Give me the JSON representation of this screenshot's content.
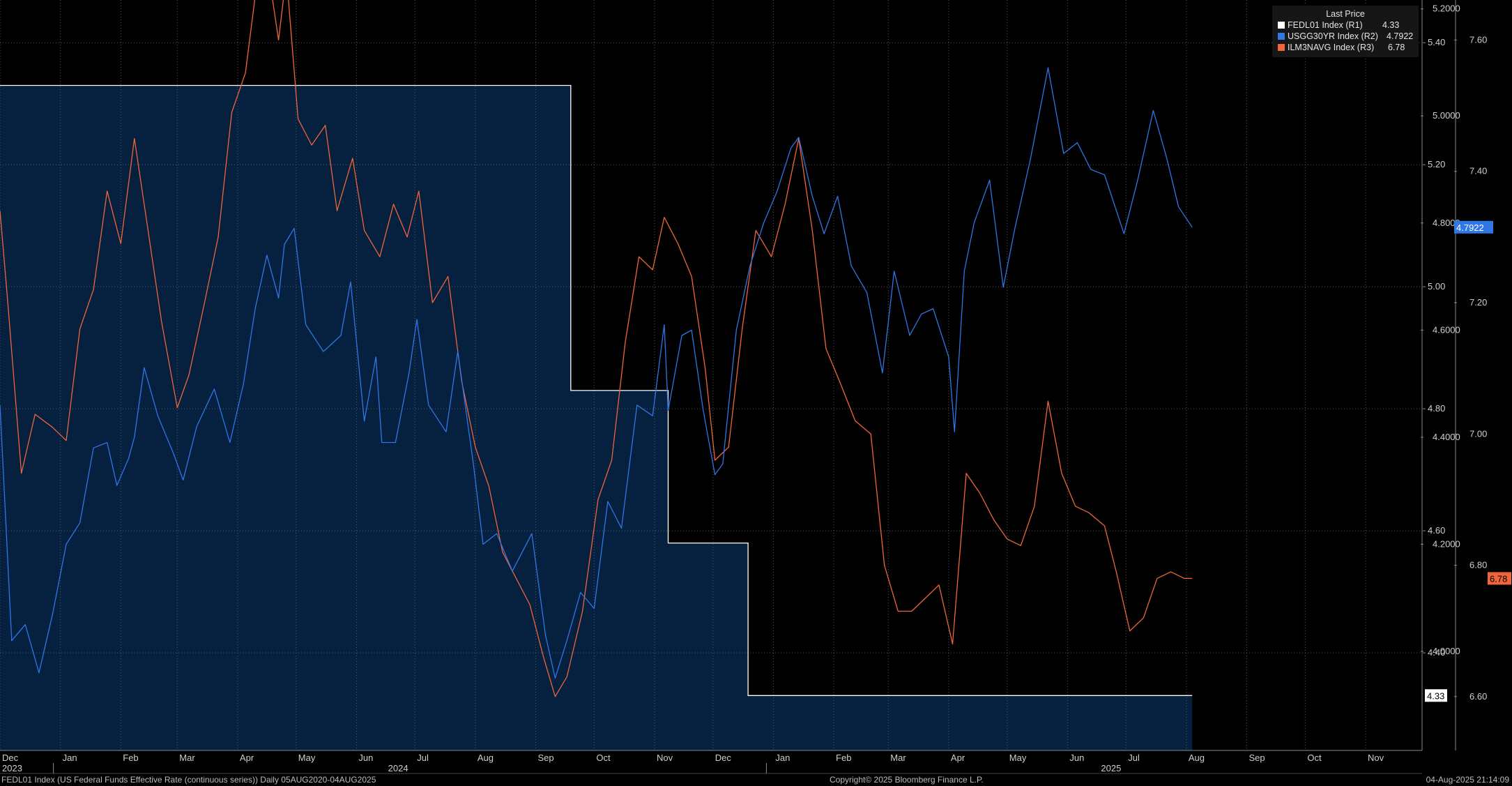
{
  "legend": {
    "header": "Last Price",
    "items": [
      {
        "label": "FEDL01 Index  (R1)",
        "value": "4.33",
        "color": "#ffffff"
      },
      {
        "label": "USGG30YR Index  (R2)",
        "value": "4.7922",
        "color": "#2f76e6"
      },
      {
        "label": "ILM3NAVG Index  (R3)",
        "value": "6.78",
        "color": "#f0653a"
      }
    ]
  },
  "footer": {
    "left": "FEDL01 Index (US Federal Funds Effective Rate (continuous series))  Daily 05AUG2020-04AUG2025",
    "center": "Copyright© 2025 Bloomberg Finance L.P.",
    "right": "04-Aug-2025 21:14:09"
  },
  "colors": {
    "background": "#000000",
    "fed_fill": "#06203f",
    "fed_line": "#ffffff",
    "ust": "#2f76e6",
    "mort": "#f0653a",
    "grid": "#5a5a5a"
  },
  "chart_data": {
    "type": "line",
    "x_range": [
      "2023-12-01",
      "2025-11-30"
    ],
    "x_ticks": [
      {
        "label": "Dec",
        "year": "2023",
        "date": "2023-12-01"
      },
      {
        "label": "Jan",
        "year": "2024",
        "date": "2024-01-01"
      },
      {
        "label": "Feb",
        "date": "2024-02-01"
      },
      {
        "label": "Mar",
        "date": "2024-03-01"
      },
      {
        "label": "Apr",
        "date": "2024-04-01"
      },
      {
        "label": "May",
        "date": "2024-05-01"
      },
      {
        "label": "Jun",
        "date": "2024-06-01"
      },
      {
        "label": "Jul",
        "date": "2024-07-01"
      },
      {
        "label": "Aug",
        "date": "2024-08-01"
      },
      {
        "label": "Sep",
        "date": "2024-09-01"
      },
      {
        "label": "Oct",
        "date": "2024-10-01"
      },
      {
        "label": "Nov",
        "date": "2024-11-01"
      },
      {
        "label": "Dec",
        "date": "2024-12-01"
      },
      {
        "label": "Jan",
        "year": "2025",
        "date": "2025-01-01"
      },
      {
        "label": "Feb",
        "date": "2025-02-01"
      },
      {
        "label": "Mar",
        "date": "2025-03-01"
      },
      {
        "label": "Apr",
        "date": "2025-04-01"
      },
      {
        "label": "May",
        "date": "2025-05-01"
      },
      {
        "label": "Jun",
        "date": "2025-06-01"
      },
      {
        "label": "Jul",
        "date": "2025-07-01"
      },
      {
        "label": "Aug",
        "date": "2025-08-01"
      },
      {
        "label": "Sep",
        "date": "2025-09-01"
      },
      {
        "label": "Oct",
        "date": "2025-10-01"
      },
      {
        "label": "Nov",
        "date": "2025-11-01"
      }
    ],
    "axes": {
      "R1": {
        "ticks": [
          "5.40",
          "5.20",
          "5.00",
          "4.80",
          "4.60",
          "4.40"
        ],
        "ylim": [
          4.24,
          5.47
        ]
      },
      "R2": {
        "ticks": [
          "5.2000",
          "5.0000",
          "4.8000",
          "4.6000",
          "4.4000",
          "4.2000",
          "4.0000"
        ],
        "ylim": [
          3.815,
          5.2165
        ]
      },
      "R3": {
        "ticks": [
          "7.60",
          "7.40",
          "7.20",
          "7.00",
          "6.80",
          "6.60"
        ],
        "ylim": [
          6.518,
          7.661
        ]
      }
    },
    "last_price_labels": [
      {
        "series": "FEDL01 Index",
        "value": "4.33",
        "axis": "R1"
      },
      {
        "series": "USGG30YR Index",
        "value": "4.7922",
        "axis": "R2"
      },
      {
        "series": "ILM3NAVG Index",
        "value": "6.78",
        "axis": "R3"
      }
    ],
    "series": [
      {
        "name": "FEDL01 Index",
        "axis": "R1",
        "style": "step-area",
        "points": [
          [
            "2023-12-01",
            5.33
          ],
          [
            "2024-09-19",
            5.33
          ],
          [
            "2024-09-19",
            4.83
          ],
          [
            "2024-11-08",
            4.83
          ],
          [
            "2024-11-08",
            4.58
          ],
          [
            "2024-12-19",
            4.58
          ],
          [
            "2024-12-19",
            4.33
          ],
          [
            "2025-08-04",
            4.33
          ]
        ]
      },
      {
        "name": "USGG30YR Index",
        "axis": "R2",
        "points": [
          [
            "2023-12-01",
            4.46
          ],
          [
            "2023-12-07",
            4.02
          ],
          [
            "2023-12-14",
            4.05
          ],
          [
            "2023-12-21",
            3.96
          ],
          [
            "2023-12-28",
            4.07
          ],
          [
            "2024-01-04",
            4.2
          ],
          [
            "2024-01-11",
            4.24
          ],
          [
            "2024-01-18",
            4.38
          ],
          [
            "2024-01-25",
            4.39
          ],
          [
            "2024-01-30",
            4.31
          ],
          [
            "2024-02-05",
            4.36
          ],
          [
            "2024-02-08",
            4.4
          ],
          [
            "2024-02-13",
            4.53
          ],
          [
            "2024-02-20",
            4.44
          ],
          [
            "2024-02-28",
            4.37
          ],
          [
            "2024-03-04",
            4.32
          ],
          [
            "2024-03-11",
            4.42
          ],
          [
            "2024-03-20",
            4.49
          ],
          [
            "2024-03-28",
            4.39
          ],
          [
            "2024-04-04",
            4.5
          ],
          [
            "2024-04-10",
            4.64
          ],
          [
            "2024-04-16",
            4.74
          ],
          [
            "2024-04-22",
            4.66
          ],
          [
            "2024-04-25",
            4.76
          ],
          [
            "2024-04-30",
            4.79
          ],
          [
            "2024-05-06",
            4.61
          ],
          [
            "2024-05-15",
            4.56
          ],
          [
            "2024-05-24",
            4.59
          ],
          [
            "2024-05-29",
            4.69
          ],
          [
            "2024-06-05",
            4.43
          ],
          [
            "2024-06-11",
            4.55
          ],
          [
            "2024-06-14",
            4.39
          ],
          [
            "2024-06-21",
            4.39
          ],
          [
            "2024-06-28",
            4.52
          ],
          [
            "2024-07-02",
            4.62
          ],
          [
            "2024-07-08",
            4.46
          ],
          [
            "2024-07-17",
            4.41
          ],
          [
            "2024-07-23",
            4.56
          ],
          [
            "2024-07-31",
            4.35
          ],
          [
            "2024-08-05",
            4.2
          ],
          [
            "2024-08-12",
            4.22
          ],
          [
            "2024-08-20",
            4.15
          ],
          [
            "2024-08-30",
            4.22
          ],
          [
            "2024-09-06",
            4.03
          ],
          [
            "2024-09-11",
            3.95
          ],
          [
            "2024-09-17",
            4.02
          ],
          [
            "2024-09-24",
            4.11
          ],
          [
            "2024-10-01",
            4.08
          ],
          [
            "2024-10-08",
            4.28
          ],
          [
            "2024-10-15",
            4.23
          ],
          [
            "2024-10-23",
            4.46
          ],
          [
            "2024-10-31",
            4.44
          ],
          [
            "2024-11-06",
            4.61
          ],
          [
            "2024-11-08",
            4.45
          ],
          [
            "2024-11-15",
            4.59
          ],
          [
            "2024-11-20",
            4.6
          ],
          [
            "2024-11-26",
            4.45
          ],
          [
            "2024-12-02",
            4.33
          ],
          [
            "2024-12-06",
            4.35
          ],
          [
            "2024-12-13",
            4.6
          ],
          [
            "2024-12-20",
            4.72
          ],
          [
            "2024-12-27",
            4.8
          ],
          [
            "2025-01-03",
            4.86
          ],
          [
            "2025-01-10",
            4.94
          ],
          [
            "2025-01-14",
            4.96
          ],
          [
            "2025-01-21",
            4.85
          ],
          [
            "2025-01-27",
            4.78
          ],
          [
            "2025-02-03",
            4.85
          ],
          [
            "2025-02-10",
            4.72
          ],
          [
            "2025-02-18",
            4.67
          ],
          [
            "2025-02-26",
            4.52
          ],
          [
            "2025-03-04",
            4.71
          ],
          [
            "2025-03-12",
            4.59
          ],
          [
            "2025-03-18",
            4.63
          ],
          [
            "2025-03-24",
            4.64
          ],
          [
            "2025-04-01",
            4.55
          ],
          [
            "2025-04-04",
            4.41
          ],
          [
            "2025-04-09",
            4.71
          ],
          [
            "2025-04-14",
            4.8
          ],
          [
            "2025-04-22",
            4.88
          ],
          [
            "2025-04-29",
            4.68
          ],
          [
            "2025-05-05",
            4.79
          ],
          [
            "2025-05-13",
            4.92
          ],
          [
            "2025-05-22",
            5.09
          ],
          [
            "2025-05-30",
            4.93
          ],
          [
            "2025-06-06",
            4.95
          ],
          [
            "2025-06-13",
            4.9
          ],
          [
            "2025-06-20",
            4.89
          ],
          [
            "2025-06-30",
            4.78
          ],
          [
            "2025-07-07",
            4.88
          ],
          [
            "2025-07-15",
            5.01
          ],
          [
            "2025-07-22",
            4.92
          ],
          [
            "2025-07-28",
            4.83
          ],
          [
            "2025-08-04",
            4.7922
          ]
        ]
      },
      {
        "name": "ILM3NAVG Index",
        "axis": "R3",
        "points": [
          [
            "2023-12-01",
            7.34
          ],
          [
            "2023-12-05",
            7.2
          ],
          [
            "2023-12-12",
            6.94
          ],
          [
            "2023-12-19",
            7.03
          ],
          [
            "2023-12-28",
            7.01
          ],
          [
            "2024-01-04",
            6.99
          ],
          [
            "2024-01-11",
            7.16
          ],
          [
            "2024-01-18",
            7.22
          ],
          [
            "2024-01-25",
            7.37
          ],
          [
            "2024-02-01",
            7.29
          ],
          [
            "2024-02-08",
            7.45
          ],
          [
            "2024-02-15",
            7.31
          ],
          [
            "2024-02-22",
            7.17
          ],
          [
            "2024-03-01",
            7.04
          ],
          [
            "2024-03-07",
            7.09
          ],
          [
            "2024-03-15",
            7.2
          ],
          [
            "2024-03-22",
            7.3
          ],
          [
            "2024-03-29",
            7.49
          ],
          [
            "2024-04-05",
            7.55
          ],
          [
            "2024-04-11",
            7.69
          ],
          [
            "2024-04-16",
            7.72
          ],
          [
            "2024-04-22",
            7.6
          ],
          [
            "2024-04-26",
            7.7
          ],
          [
            "2024-05-02",
            7.48
          ],
          [
            "2024-05-09",
            7.44
          ],
          [
            "2024-05-16",
            7.47
          ],
          [
            "2024-05-22",
            7.34
          ],
          [
            "2024-05-30",
            7.42
          ],
          [
            "2024-06-05",
            7.31
          ],
          [
            "2024-06-13",
            7.27
          ],
          [
            "2024-06-20",
            7.35
          ],
          [
            "2024-06-27",
            7.3
          ],
          [
            "2024-07-03",
            7.37
          ],
          [
            "2024-07-10",
            7.2
          ],
          [
            "2024-07-18",
            7.24
          ],
          [
            "2024-07-25",
            7.08
          ],
          [
            "2024-08-01",
            6.98
          ],
          [
            "2024-08-08",
            6.92
          ],
          [
            "2024-08-15",
            6.82
          ],
          [
            "2024-08-22",
            6.78
          ],
          [
            "2024-08-29",
            6.74
          ],
          [
            "2024-09-05",
            6.66
          ],
          [
            "2024-09-11",
            6.6
          ],
          [
            "2024-09-17",
            6.63
          ],
          [
            "2024-09-25",
            6.73
          ],
          [
            "2024-10-03",
            6.9
          ],
          [
            "2024-10-10",
            6.96
          ],
          [
            "2024-10-17",
            7.14
          ],
          [
            "2024-10-24",
            7.27
          ],
          [
            "2024-10-31",
            7.25
          ],
          [
            "2024-11-06",
            7.33
          ],
          [
            "2024-11-13",
            7.29
          ],
          [
            "2024-11-20",
            7.24
          ],
          [
            "2024-11-27",
            7.1
          ],
          [
            "2024-12-02",
            6.96
          ],
          [
            "2024-12-09",
            6.98
          ],
          [
            "2024-12-16",
            7.16
          ],
          [
            "2024-12-23",
            7.31
          ],
          [
            "2024-12-31",
            7.27
          ],
          [
            "2025-01-07",
            7.35
          ],
          [
            "2025-01-14",
            7.45
          ],
          [
            "2025-01-21",
            7.31
          ],
          [
            "2025-01-28",
            7.13
          ],
          [
            "2025-02-04",
            7.08
          ],
          [
            "2025-02-12",
            7.02
          ],
          [
            "2025-02-20",
            7.0
          ],
          [
            "2025-02-27",
            6.8
          ],
          [
            "2025-03-06",
            6.73
          ],
          [
            "2025-03-13",
            6.73
          ],
          [
            "2025-03-20",
            6.75
          ],
          [
            "2025-03-27",
            6.77
          ],
          [
            "2025-04-03",
            6.68
          ],
          [
            "2025-04-10",
            6.94
          ],
          [
            "2025-04-17",
            6.91
          ],
          [
            "2025-04-24",
            6.87
          ],
          [
            "2025-05-01",
            6.84
          ],
          [
            "2025-05-08",
            6.83
          ],
          [
            "2025-05-15",
            6.89
          ],
          [
            "2025-05-22",
            7.05
          ],
          [
            "2025-05-29",
            6.94
          ],
          [
            "2025-06-05",
            6.89
          ],
          [
            "2025-06-12",
            6.88
          ],
          [
            "2025-06-20",
            6.86
          ],
          [
            "2025-06-26",
            6.79
          ],
          [
            "2025-07-03",
            6.7
          ],
          [
            "2025-07-10",
            6.72
          ],
          [
            "2025-07-17",
            6.78
          ],
          [
            "2025-07-24",
            6.79
          ],
          [
            "2025-07-31",
            6.78
          ],
          [
            "2025-08-04",
            6.78
          ]
        ]
      }
    ]
  }
}
